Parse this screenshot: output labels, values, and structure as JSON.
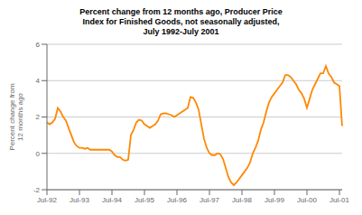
{
  "chart_data": {
    "type": "line",
    "title": "Percent change from 12 months ago, Producer Price\nIndex for Finished Goods, not seasonally adjusted,\nJuly 1992-July 2001",
    "ylabel": "Percent change from\n12 months ago",
    "color": "#FF8800",
    "grid": true,
    "ylim": [
      -2.0,
      6.0
    ],
    "yticks": [
      -2.0,
      0.0,
      2.0,
      4.0,
      6.0
    ],
    "categories": [
      "Jul-92",
      null,
      null,
      null,
      null,
      null,
      null,
      null,
      null,
      null,
      null,
      null,
      "Jul-93",
      null,
      null,
      null,
      null,
      null,
      null,
      null,
      null,
      null,
      null,
      null,
      "Jul-94",
      null,
      null,
      null,
      null,
      null,
      null,
      null,
      null,
      null,
      null,
      null,
      "Jul-95",
      null,
      null,
      null,
      null,
      null,
      null,
      null,
      null,
      null,
      null,
      null,
      "Jul-96",
      null,
      null,
      null,
      null,
      null,
      null,
      null,
      null,
      null,
      null,
      null,
      "Jul-97",
      null,
      null,
      null,
      null,
      null,
      null,
      null,
      null,
      null,
      null,
      null,
      "Jul-98",
      null,
      null,
      null,
      null,
      null,
      null,
      null,
      null,
      null,
      null,
      null,
      "Jul-99",
      null,
      null,
      null,
      null,
      null,
      null,
      null,
      null,
      null,
      null,
      null,
      "Jul-00",
      null,
      null,
      null,
      null,
      null,
      null,
      null,
      null,
      null,
      null,
      null,
      "Jul-01",
      null
    ],
    "values": [
      1.7,
      1.6,
      1.7,
      1.9,
      2.5,
      2.3,
      2.0,
      1.8,
      1.4,
      1.0,
      0.6,
      0.4,
      0.3,
      0.3,
      0.25,
      0.3,
      0.2,
      0.2,
      0.2,
      0.2,
      0.2,
      0.2,
      0.2,
      0.2,
      0.1,
      -0.1,
      -0.2,
      -0.2,
      -0.35,
      -0.4,
      -0.35,
      1.0,
      1.3,
      1.7,
      1.85,
      1.8,
      1.6,
      1.5,
      1.4,
      1.5,
      1.6,
      1.8,
      2.15,
      2.2,
      2.2,
      2.15,
      2.1,
      2.0,
      2.1,
      2.2,
      2.3,
      2.4,
      2.5,
      3.1,
      3.05,
      2.8,
      2.4,
      1.6,
      0.8,
      0.3,
      0.0,
      -0.1,
      -0.1,
      0.0,
      -0.05,
      -0.3,
      -0.8,
      -1.3,
      -1.6,
      -1.75,
      -1.6,
      -1.4,
      -1.2,
      -1.0,
      -0.8,
      -0.5,
      0.0,
      0.3,
      0.7,
      1.3,
      1.7,
      2.3,
      2.8,
      3.1,
      3.3,
      3.5,
      3.7,
      3.9,
      4.3,
      4.3,
      4.2,
      4.0,
      3.8,
      3.5,
      3.3,
      3.0,
      2.5,
      3.0,
      3.5,
      3.8,
      4.1,
      4.4,
      4.4,
      4.8,
      4.4,
      4.2,
      3.9,
      3.8,
      3.7,
      1.5
    ]
  }
}
